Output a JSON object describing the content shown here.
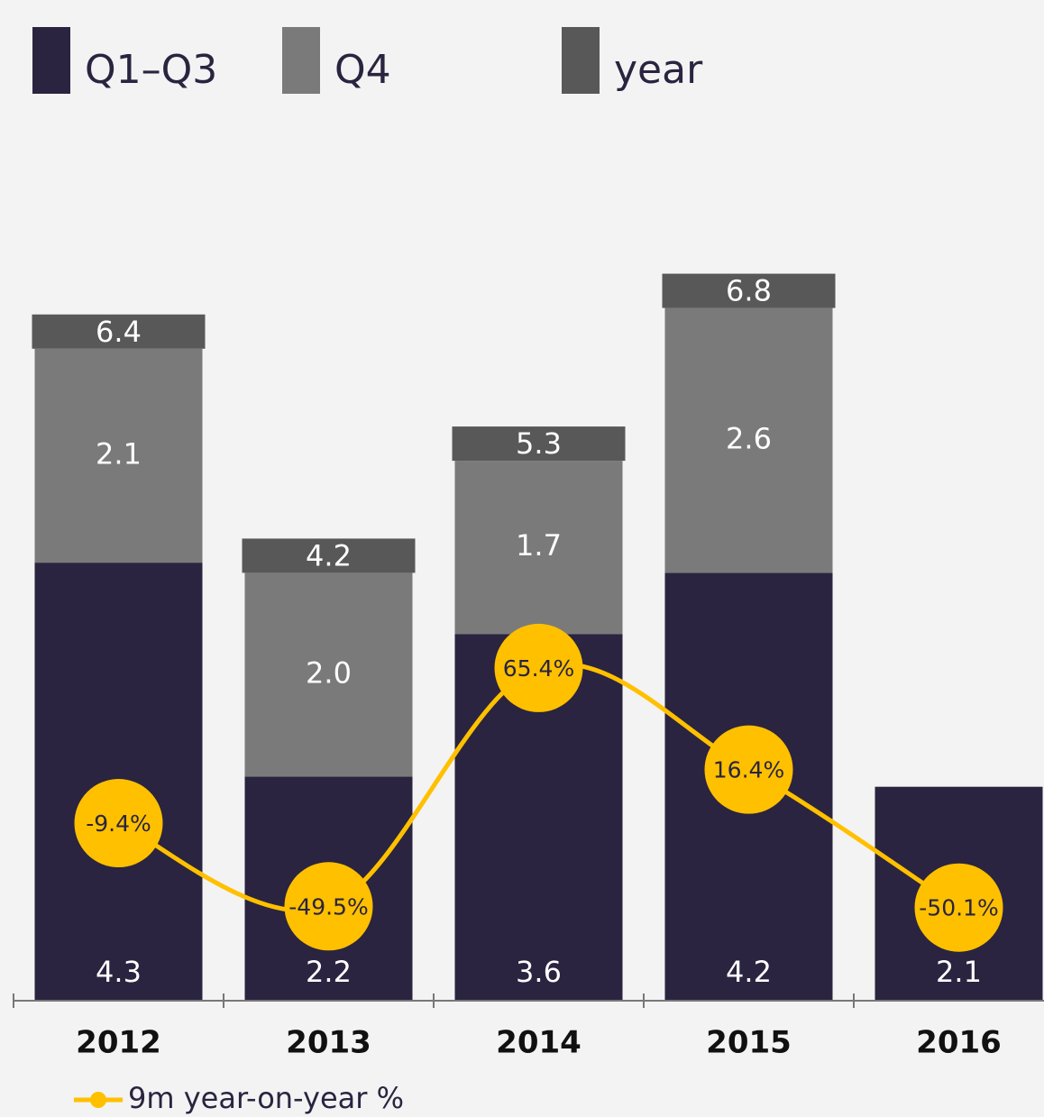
{
  "chart_data": {
    "type": "bar",
    "categories": [
      "2012",
      "2013",
      "2014",
      "2015",
      "2016"
    ],
    "ylim": [
      0,
      9
    ],
    "y2lim": [
      -95,
      347
    ],
    "series": [
      {
        "name": "Q1–Q3",
        "color": "#2a2440",
        "values": [
          4.3,
          2.2,
          3.6,
          4.2,
          2.1
        ]
      },
      {
        "name": "Q4",
        "color": "#7a7a7a",
        "values": [
          2.1,
          2.0,
          1.7,
          2.6,
          null
        ],
        "value_labels": [
          "2.1",
          "2.0",
          "1.7",
          "2.6",
          null
        ]
      },
      {
        "name": "year",
        "color": "#585858",
        "values": [
          6.4,
          4.2,
          5.3,
          6.8,
          null
        ]
      },
      {
        "name": "9m year-on-year %",
        "color": "#ffc000",
        "type": "line",
        "axis": "y2",
        "values": [
          -9.4,
          -49.5,
          65.4,
          16.4,
          -50.1
        ],
        "value_labels": [
          "-9.4%",
          "-49.5%",
          "65.4%",
          "16.4%",
          "-50.1%"
        ]
      }
    ]
  }
}
